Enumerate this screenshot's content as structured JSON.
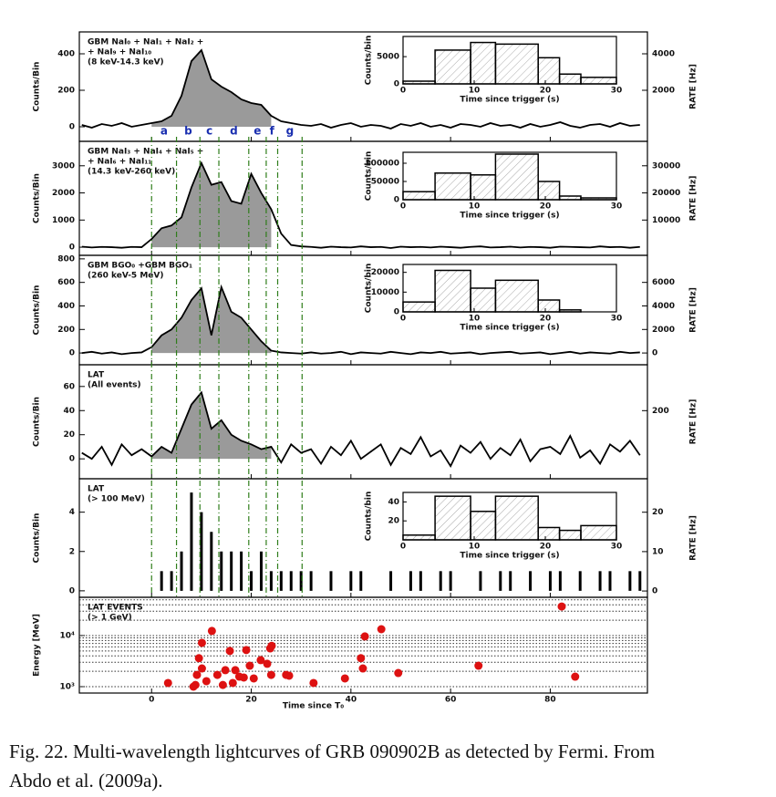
{
  "chart_data": [
    {
      "type": "line",
      "label": [
        "GBM NaI₀ + NaI₁ + NaI₂ +",
        "+ NaI₉ + NaI₁₀",
        "(8 keV-14.3 keV)"
      ],
      "y_label": "Counts/Bin",
      "y2_label": "RATE [Hz]",
      "color": "#000000",
      "fill": "#9a9a9a",
      "shade": true,
      "x": [
        -14,
        -12,
        -10,
        -8,
        -6,
        -4,
        -2,
        0,
        2,
        4,
        6,
        8,
        10,
        12,
        14,
        16,
        18,
        20,
        22,
        24,
        26,
        28,
        30,
        32,
        34,
        36,
        38,
        40,
        42,
        44,
        46,
        48,
        50,
        52,
        54,
        56,
        58,
        60,
        62,
        64,
        66,
        68,
        70,
        72,
        74,
        76,
        78,
        80,
        82,
        84,
        86,
        88,
        90,
        92,
        94,
        96,
        98
      ],
      "values": [
        10,
        -5,
        15,
        5,
        20,
        0,
        10,
        20,
        30,
        60,
        170,
        360,
        420,
        260,
        220,
        190,
        150,
        130,
        120,
        60,
        30,
        20,
        10,
        5,
        15,
        -5,
        10,
        20,
        0,
        10,
        5,
        -10,
        15,
        5,
        20,
        0,
        10,
        -5,
        15,
        10,
        0,
        20,
        5,
        10,
        -5,
        15,
        0,
        10,
        25,
        5,
        -5,
        10,
        15,
        0,
        20,
        5,
        10
      ],
      "ylim": [
        -80,
        520
      ],
      "yticks": [
        0,
        200,
        400
      ],
      "y2lim": [
        -800,
        5200
      ],
      "y2ticks": [
        2000,
        4000
      ],
      "inset": {
        "type": "hist",
        "bins": [
          0,
          4.5,
          9.5,
          13,
          19,
          22,
          25,
          30
        ],
        "values": [
          500,
          6200,
          7600,
          7300,
          4800,
          1800,
          1200
        ],
        "xlim": [
          0,
          30
        ],
        "xticks": [
          0,
          10,
          20,
          30
        ],
        "ylim": [
          0,
          8700
        ],
        "yticks": [
          0,
          5000
        ],
        "x_label": "Time since trigger (s)",
        "y_label": "Counts/bin"
      }
    },
    {
      "type": "line",
      "label": [
        "GBM NaI₃ + NaI₄ + NaI₅ +",
        "+ NaI₆ + NaI₁₁",
        "(14.3 keV-260 keV)"
      ],
      "y_label": "Counts/Bin",
      "y2_label": "RATE [Hz]",
      "color": "#000000",
      "fill": "#9a9a9a",
      "shade": true,
      "x": [
        -14,
        -12,
        -10,
        -8,
        -6,
        -4,
        -2,
        0,
        2,
        4,
        6,
        8,
        10,
        12,
        14,
        16,
        18,
        20,
        22,
        24,
        26,
        28,
        30,
        32,
        34,
        36,
        38,
        40,
        42,
        44,
        46,
        48,
        50,
        52,
        54,
        56,
        58,
        60,
        62,
        64,
        66,
        68,
        70,
        72,
        74,
        76,
        78,
        80,
        82,
        84,
        86,
        88,
        90,
        92,
        94,
        96,
        98
      ],
      "values": [
        20,
        -10,
        10,
        0,
        -20,
        10,
        0,
        300,
        700,
        800,
        1100,
        2200,
        3100,
        2300,
        2400,
        1700,
        1600,
        2700,
        2000,
        1400,
        500,
        80,
        30,
        10,
        -20,
        20,
        0,
        -10,
        30,
        0,
        10,
        -30,
        20,
        0,
        10,
        -10,
        20,
        0,
        -20,
        10,
        30,
        -10,
        0,
        20,
        -10,
        10,
        0,
        -20,
        20,
        10,
        0,
        -10,
        30,
        0,
        10,
        -20,
        10
      ],
      "ylim": [
        -300,
        3900
      ],
      "yticks": [
        0,
        1000,
        2000,
        3000
      ],
      "y2lim": [
        -3000,
        39000
      ],
      "y2ticks": [
        10000,
        20000,
        30000
      ],
      "inset": {
        "type": "hist",
        "bins": [
          0,
          4.5,
          9.5,
          13,
          19,
          22,
          25,
          30
        ],
        "values": [
          22000,
          73000,
          68000,
          125000,
          50000,
          10000,
          5000
        ],
        "xlim": [
          0,
          30
        ],
        "xticks": [
          0,
          10,
          20,
          30
        ],
        "ylim": [
          0,
          130000
        ],
        "yticks": [
          0,
          50000,
          100000
        ],
        "x_label": "Time since trigger (s)",
        "y_label": "Counts/bin"
      }
    },
    {
      "type": "line",
      "label": [
        "GBM BGO₀ +GBM BGO₁",
        "(260 keV-5 MeV)"
      ],
      "y_label": "Counts/Bin",
      "y2_label": "RATE [Hz]",
      "color": "#000000",
      "fill": "#9a9a9a",
      "shade": true,
      "x": [
        -14,
        -12,
        -10,
        -8,
        -6,
        -4,
        -2,
        0,
        2,
        4,
        6,
        8,
        10,
        12,
        14,
        16,
        18,
        20,
        22,
        24,
        26,
        28,
        30,
        32,
        34,
        36,
        38,
        40,
        42,
        44,
        46,
        48,
        50,
        52,
        54,
        56,
        58,
        60,
        62,
        64,
        66,
        68,
        70,
        72,
        74,
        76,
        78,
        80,
        82,
        84,
        86,
        88,
        90,
        92,
        94,
        96,
        98
      ],
      "values": [
        0,
        10,
        -5,
        5,
        -10,
        0,
        5,
        50,
        150,
        200,
        300,
        450,
        550,
        150,
        560,
        350,
        300,
        200,
        100,
        20,
        5,
        0,
        -5,
        5,
        -5,
        0,
        10,
        -10,
        5,
        0,
        -5,
        10,
        0,
        -10,
        5,
        0,
        10,
        -5,
        0,
        5,
        -10,
        0,
        5,
        10,
        -5,
        0,
        5,
        -10,
        0,
        10,
        -5,
        5,
        0,
        -5,
        10,
        0,
        5
      ],
      "ylim": [
        -100,
        830
      ],
      "yticks": [
        0,
        200,
        400,
        600,
        800
      ],
      "y2lim": [
        -1000,
        8300
      ],
      "y2ticks": [
        0,
        2000,
        4000,
        6000
      ],
      "inset": {
        "type": "hist",
        "bins": [
          0,
          4.5,
          9.5,
          13,
          19,
          22,
          25,
          30
        ],
        "values": [
          5000,
          21000,
          12000,
          16000,
          6000,
          1000,
          0
        ],
        "xlim": [
          0,
          30
        ],
        "xticks": [
          0,
          10,
          20,
          30
        ],
        "ylim": [
          0,
          24000
        ],
        "yticks": [
          0,
          10000,
          20000
        ],
        "x_label": "Time since trigger (s)",
        "y_label": "Counts/bin"
      }
    },
    {
      "type": "line",
      "label": [
        "LAT",
        "(All events)"
      ],
      "y_label": "Counts/Bin",
      "y2_label": "RATE [Hz]",
      "color": "#000000",
      "fill": "#9a9a9a",
      "shade": true,
      "x": [
        -14,
        -12,
        -10,
        -8,
        -6,
        -4,
        -2,
        0,
        2,
        4,
        6,
        8,
        10,
        12,
        14,
        16,
        18,
        20,
        22,
        24,
        26,
        28,
        30,
        32,
        34,
        36,
        38,
        40,
        42,
        44,
        46,
        48,
        50,
        52,
        54,
        56,
        58,
        60,
        62,
        64,
        66,
        68,
        70,
        72,
        74,
        76,
        78,
        80,
        82,
        84,
        86,
        88,
        90,
        92,
        94,
        96,
        98
      ],
      "values": [
        5,
        0,
        10,
        -5,
        12,
        3,
        8,
        2,
        10,
        5,
        25,
        45,
        55,
        25,
        32,
        20,
        15,
        12,
        8,
        10,
        -3,
        12,
        5,
        8,
        -4,
        10,
        3,
        15,
        0,
        6,
        12,
        -5,
        9,
        4,
        18,
        2,
        7,
        -6,
        11,
        5,
        14,
        0,
        9,
        3,
        16,
        -2,
        8,
        10,
        4,
        19,
        1,
        7,
        -4,
        12,
        6,
        15,
        3
      ],
      "ylim": [
        -16.5,
        78
      ],
      "yticks": [
        0,
        20,
        40,
        60
      ],
      "y2lim": [
        -82,
        390
      ],
      "y2ticks": [
        200
      ]
    },
    {
      "type": "impulse",
      "label": [
        "LAT",
        "(> 100 MeV)"
      ],
      "y_label": "Counts/Bin",
      "y2_label": "RATE [Hz]",
      "color": "#000000",
      "x": [
        -14,
        -12,
        -10,
        -8,
        -6,
        -4,
        -2,
        0,
        2,
        4,
        6,
        8,
        10,
        12,
        14,
        16,
        18,
        20,
        22,
        24,
        26,
        28,
        30,
        32,
        34,
        36,
        38,
        40,
        42,
        44,
        46,
        48,
        50,
        52,
        54,
        56,
        58,
        60,
        62,
        64,
        66,
        68,
        70,
        72,
        74,
        76,
        78,
        80,
        82,
        84,
        86,
        88,
        90,
        92,
        94,
        96,
        98
      ],
      "values": [
        0,
        0,
        0,
        0,
        0,
        0,
        0,
        0,
        1,
        1,
        2,
        5,
        4,
        3,
        2,
        2,
        2,
        1,
        2,
        1,
        1,
        1,
        1,
        1,
        0,
        1,
        0,
        1,
        1,
        0,
        0,
        1,
        0,
        1,
        1,
        0,
        1,
        1,
        0,
        0,
        1,
        0,
        1,
        1,
        0,
        1,
        0,
        1,
        1,
        0,
        1,
        0,
        1,
        1,
        0,
        1,
        1
      ],
      "ylim": [
        -0.33,
        5.7
      ],
      "yticks": [
        0,
        2,
        4
      ],
      "y2lim": [
        -1.6,
        28.5
      ],
      "y2ticks": [
        0,
        10,
        20
      ],
      "inset": {
        "type": "hist",
        "bins": [
          0,
          4.5,
          9.5,
          13,
          19,
          22,
          25,
          30
        ],
        "values": [
          5,
          46,
          30,
          46,
          13,
          10,
          15
        ],
        "xlim": [
          0,
          30
        ],
        "xticks": [
          0,
          10,
          20,
          30
        ],
        "ylim": [
          0,
          50
        ],
        "yticks": [
          20,
          40
        ],
        "x_label": "Time since trigger (s)",
        "y_label": "Counts/bin"
      }
    },
    {
      "type": "scatter",
      "label": [
        "LAT EVENTS",
        "(> 1 GeV)"
      ],
      "y_label": "Energy [MeV]",
      "color": "#dd1111",
      "log_y": true,
      "x": [
        3.3,
        8.4,
        8.8,
        9.1,
        9.5,
        10.1,
        10.1,
        11,
        12.1,
        13.2,
        14.3,
        14.8,
        15.7,
        16.3,
        16.8,
        17.6,
        18.5,
        19,
        19.7,
        20.5,
        21.9,
        23.2,
        23.8,
        24.1,
        24,
        27,
        27.6,
        32.5,
        38.8,
        42,
        42.4,
        42.8,
        46.1,
        49.5,
        65.6,
        82.3,
        85
      ],
      "values": [
        1180,
        1000,
        1080,
        1700,
        3600,
        7200,
        2270,
        1280,
        12300,
        1700,
        1080,
        2100,
        5000,
        1180,
        2100,
        1570,
        1510,
        5200,
        2570,
        1450,
        3300,
        2800,
        5600,
        6300,
        1700,
        1700,
        1640,
        1180,
        1450,
        3600,
        2270,
        9600,
        13300,
        1850,
        2570,
        37000,
        1570
      ],
      "ylim": [
        750,
        56000
      ],
      "yticks": [
        {
          "value": 1000,
          "label": "10³"
        },
        {
          "value": 10000,
          "label": "10⁴"
        }
      ],
      "minor_yticks": [
        2000,
        3000,
        4000,
        5000,
        6000,
        7000,
        8000,
        9000,
        20000,
        30000,
        40000,
        50000
      ]
    }
  ],
  "figure": {
    "x_label": "Time since T₀",
    "xlim": [
      -14.5,
      99.5
    ],
    "xticks": [
      0,
      20,
      40,
      60,
      80
    ],
    "markers": {
      "times": [
        0,
        5,
        9.7,
        13.5,
        19.5,
        23,
        25.3,
        30.2
      ],
      "labels": [
        "a",
        "b",
        "c",
        "d",
        "e",
        "f",
        "g"
      ],
      "color": "#2e7d1a",
      "label_color": "#1a2fb0"
    },
    "caption": [
      "Fig. 22. Multi-wavelength lightcurves of GRB 090902B as detected by Fermi. From",
      "Abdo et al. (2009a)."
    ]
  }
}
